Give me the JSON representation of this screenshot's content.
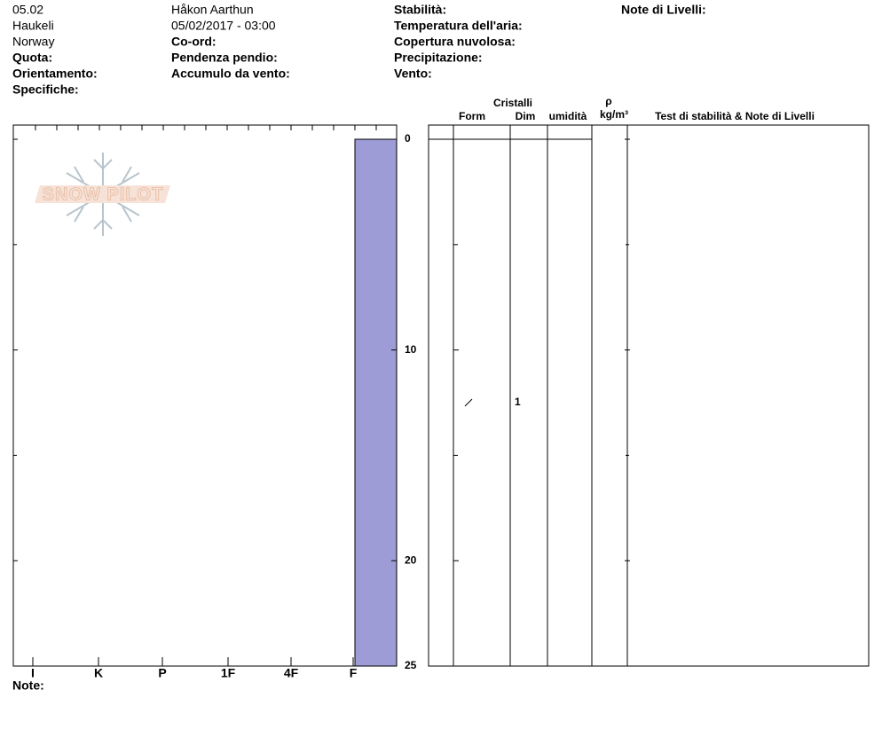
{
  "header": {
    "col1": [
      "05.02",
      "Haukeli",
      "Norway",
      "Quota:",
      "Orientamento:",
      "Specifiche:"
    ],
    "col2": [
      "Håkon Aarthun",
      "05/02/2017 - 03:00",
      "Co-ord:",
      "Pendenza pendio:",
      "Accumulo da vento:"
    ],
    "col3": [
      "Stabilità:",
      "Temperatura dell'aria:",
      "Copertura nuvolosa:",
      "Precipitazione:",
      "Vento:"
    ],
    "col4": [
      "Note di Livelli:"
    ]
  },
  "columns": {
    "crystals": "Cristalli",
    "form": "Form",
    "size": "Dim",
    "moisture": "umidità",
    "density_symbol": "ρ",
    "density_unit": "kg/m³",
    "tests": "Test di stabilità & Note di Livelli"
  },
  "watermark": "SNOW PILOT",
  "profile": {
    "ylim": [
      0,
      25
    ],
    "yticks": [
      0,
      10,
      20,
      25
    ],
    "minor_yticks": [
      5,
      15
    ],
    "hardness": [
      "I",
      "K",
      "P",
      "1F",
      "4F",
      "F"
    ],
    "bar_color": "#9e9cd6",
    "layers": [
      {
        "top": 0,
        "bottom": 25,
        "hardness": "F",
        "size": "1",
        "size_depth": 12.5
      }
    ]
  },
  "note": "Note:"
}
